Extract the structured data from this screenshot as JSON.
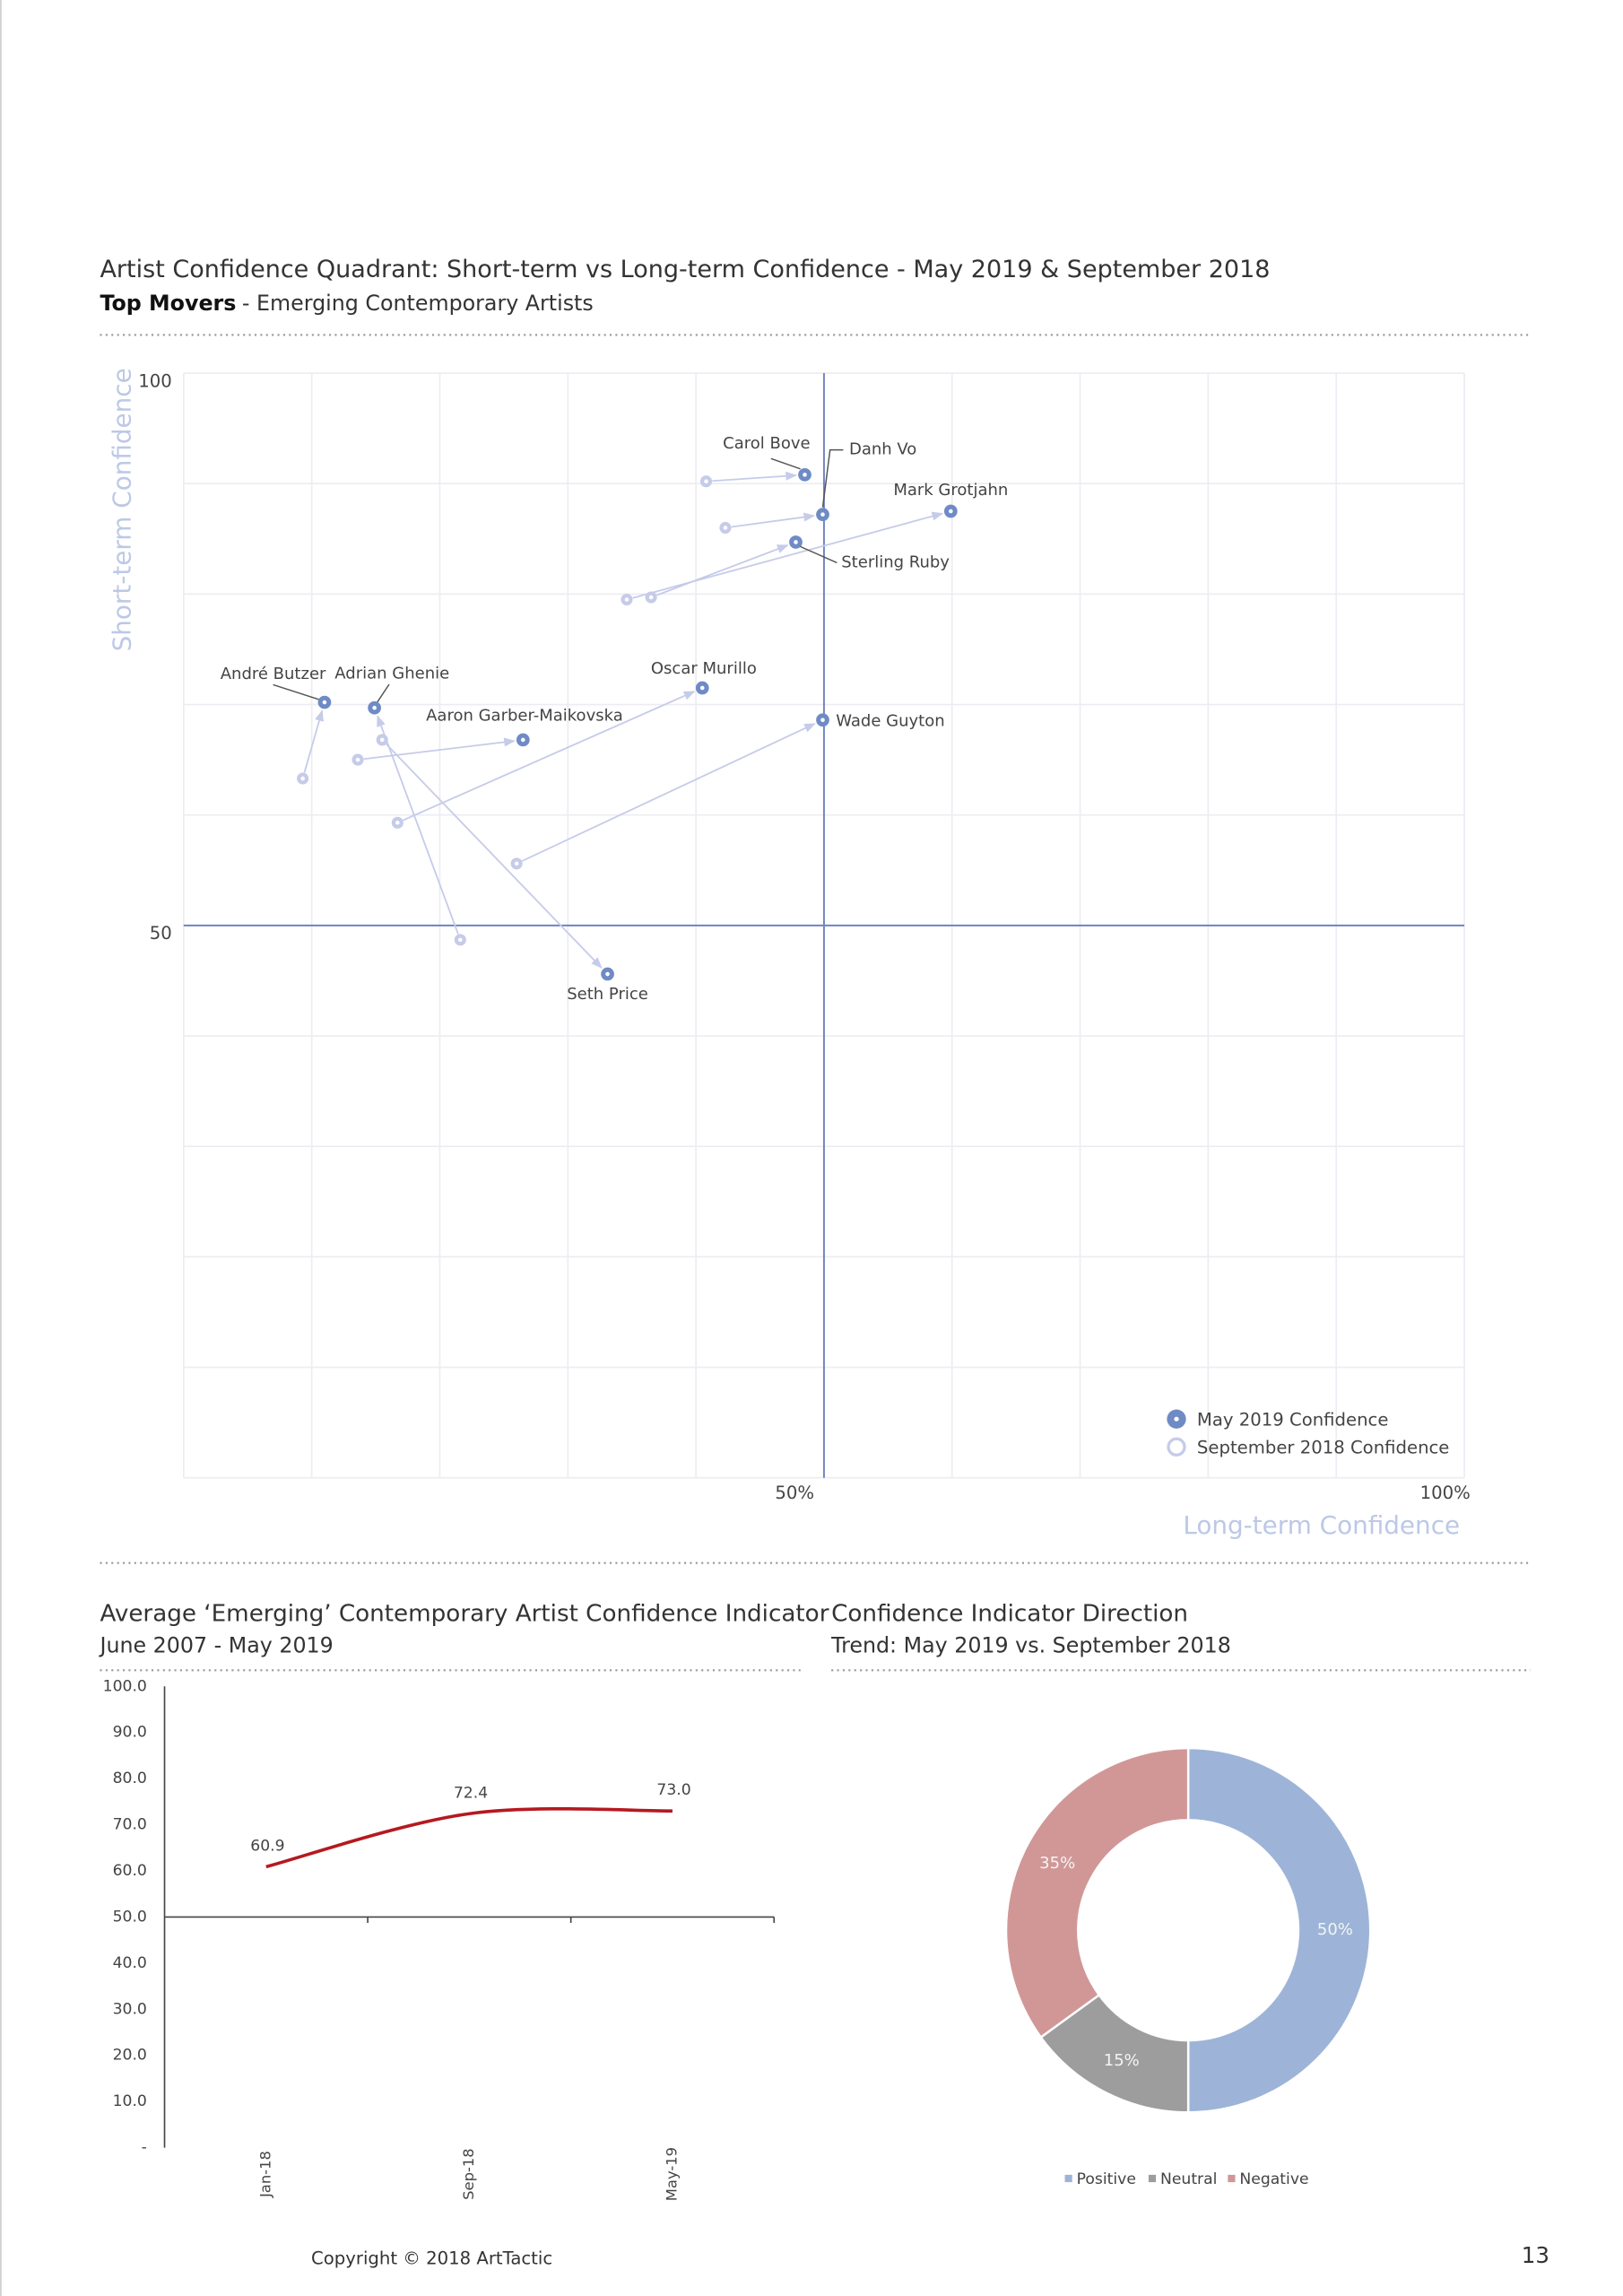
{
  "chart_data": [
    {
      "type": "scatter",
      "title": "Artist Confidence Quadrant: Short-term vs Long-term Confidence - May 2019 & September 2018",
      "subtitle": [
        "Top Movers",
        "- Emerging Contemporary Artists"
      ],
      "x_label": "Long-term Confidence",
      "y_label": "Short-term Confidence",
      "xlim": [
        0,
        100
      ],
      "ylim": [
        0,
        100
      ],
      "xticks": [
        {
          "value": 50,
          "label": "50%"
        },
        {
          "value": 100,
          "label": "100%"
        }
      ],
      "yticks": [
        50,
        100
      ],
      "xgrid": [
        0,
        10,
        20,
        30,
        40,
        50,
        60,
        70,
        80,
        90,
        100
      ],
      "ygrid": [
        0,
        10,
        20,
        30,
        40,
        50,
        60,
        70,
        80,
        90,
        100
      ],
      "grid": true,
      "quadrant_lines": [
        50,
        50
      ],
      "legend": "lower right",
      "labels": [
        "Carol Bove",
        "Danh Vo",
        "Mark Grotjahn",
        "Sterling Ruby",
        "Oscar Murillo",
        "Wade Guyton",
        "André Butzer",
        "Adrian Ghenie",
        "Aaron Garber-Maikovska",
        "Seth Price"
      ],
      "series": [
        {
          "name": "May 2019 Confidence",
          "color": "#6f8bc6",
          "x": [
            48.5,
            49.9,
            59.9,
            47.8,
            40.5,
            49.9,
            11.0,
            14.9,
            26.5,
            33.1
          ],
          "values": [
            90.8,
            87.2,
            87.5,
            84.7,
            71.5,
            68.6,
            70.2,
            69.7,
            66.8,
            45.6
          ]
        },
        {
          "name": "September 2018 Confidence",
          "color": "#c6cbe9",
          "x": [
            40.8,
            42.3,
            34.6,
            36.5,
            16.7,
            26.0,
            9.3,
            21.6,
            13.6,
            15.5
          ],
          "values": [
            90.2,
            86.0,
            79.5,
            79.7,
            59.3,
            55.6,
            63.3,
            48.7,
            65.0,
            66.8
          ]
        }
      ]
    },
    {
      "type": "line",
      "title": "Average ‘Emerging’ Contemporary Artist Confidence Indicator",
      "subtitle": "June 2007 - May 2019",
      "categories": [
        "Jan-18",
        "Sep-18",
        "May-19"
      ],
      "values": [
        60.9,
        72.4,
        73.0
      ],
      "value_labels": [
        "60.9",
        "72.4",
        "73.0"
      ],
      "color": "#b5191f",
      "ylim": [
        0,
        100
      ],
      "x_axis_at": 50,
      "yticks": [
        {
          "value": 100,
          "label": "100.0"
        },
        {
          "value": 90,
          "label": "90.0"
        },
        {
          "value": 80,
          "label": "80.0"
        },
        {
          "value": 70,
          "label": "70.0"
        },
        {
          "value": 60,
          "label": "60.0"
        },
        {
          "value": 50,
          "label": "50.0"
        },
        {
          "value": 40,
          "label": "40.0"
        },
        {
          "value": 30,
          "label": "30.0"
        },
        {
          "value": 20,
          "label": "20.0"
        },
        {
          "value": 10,
          "label": "10.0"
        },
        {
          "value": 0,
          "label": "-"
        }
      ]
    },
    {
      "type": "donut",
      "title": "Confidence Indicator Direction",
      "subtitle": "Trend: May 2019 vs. September 2018",
      "categories": [
        "Positive",
        "Neutral",
        "Negative"
      ],
      "values": [
        50,
        15,
        35
      ],
      "value_labels": [
        "50%",
        "15%",
        "35%"
      ],
      "colors": [
        "#9db4d8",
        "#9d9d9d",
        "#d19797"
      ],
      "legend": "bottom"
    }
  ],
  "footer": {
    "copyright": "Copyright © 2018 ArtTactic",
    "page_number": "13"
  }
}
